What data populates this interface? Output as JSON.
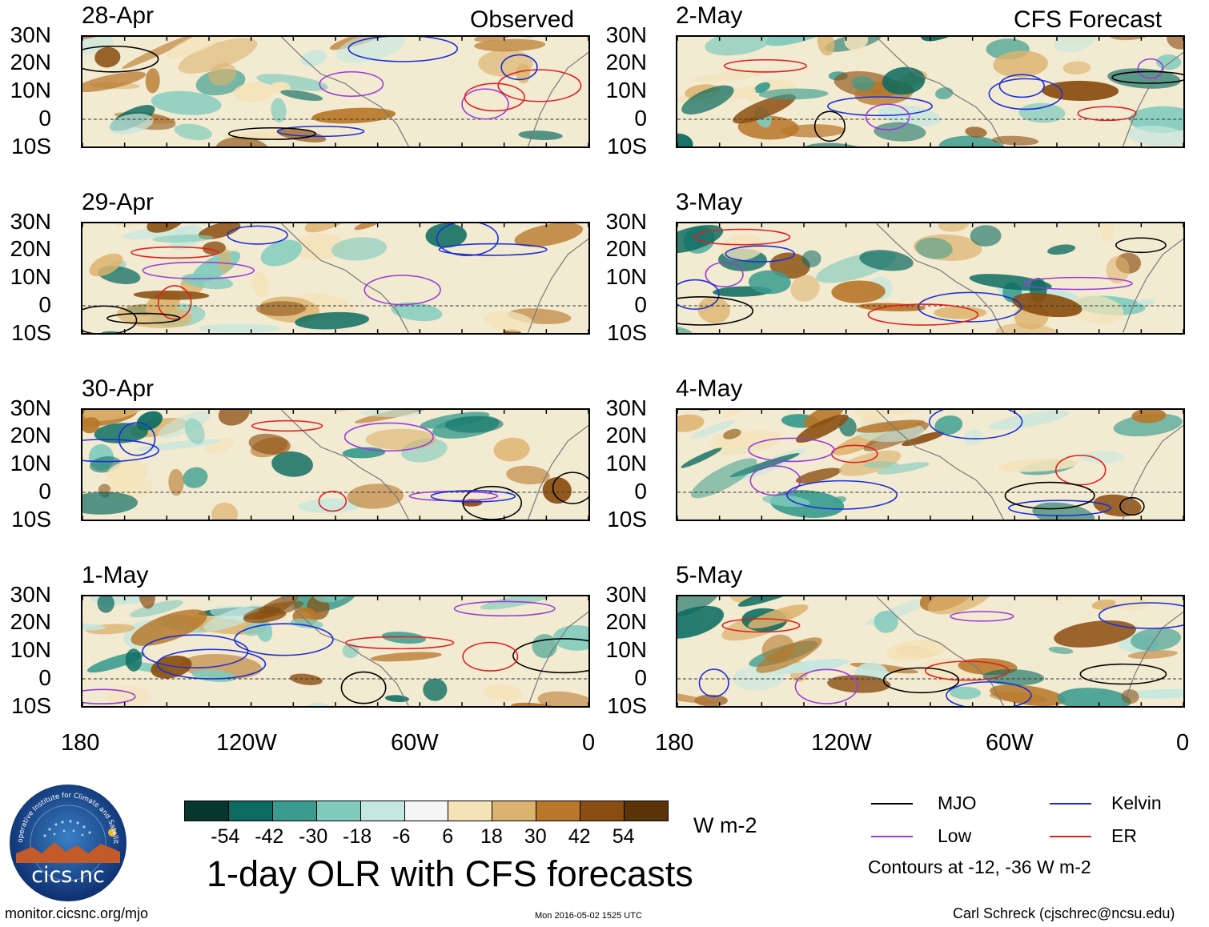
{
  "headers": {
    "left": "Observed",
    "right": "CFS Forecast"
  },
  "observed_panels": [
    {
      "date": "28-Apr"
    },
    {
      "date": "29-Apr"
    },
    {
      "date": "30-Apr"
    },
    {
      "date": "1-May"
    }
  ],
  "forecast_panels": [
    {
      "date": "2-May"
    },
    {
      "date": "3-May"
    },
    {
      "date": "4-May"
    },
    {
      "date": "5-May"
    }
  ],
  "lat_labels": [
    "30N",
    "20N",
    "10N",
    "0",
    "10S"
  ],
  "lon_labels": [
    "180",
    "120W",
    "60W",
    "0"
  ],
  "colorbar": {
    "colors": [
      "#06362e",
      "#0b6b60",
      "#3a9c8e",
      "#80cbbd",
      "#c5e7df",
      "#f5f5f5",
      "#f4e3b9",
      "#dcb36e",
      "#b8772a",
      "#8a4e10",
      "#5a3408"
    ],
    "labels": [
      "-54",
      "-42",
      "-30",
      "-18",
      "-6",
      "6",
      "18",
      "30",
      "42",
      "54"
    ],
    "units": "W m-2"
  },
  "legend": {
    "items": [
      {
        "label": "MJO",
        "color": "#000000"
      },
      {
        "label": "Kelvin",
        "color": "#1a2ed6"
      },
      {
        "label": "Low",
        "color": "#9a3cd8"
      },
      {
        "label": "ER",
        "color": "#e01f1f"
      }
    ],
    "note": "Contours at -12, -36 W m-2"
  },
  "logo": {
    "ring_text": "Cooperative Institute for Climate and Satellites",
    "name": "cics.nc"
  },
  "title": "1-day OLR with CFS forecasts",
  "footer": {
    "left": "monitor.cicsnc.org/mjo",
    "center": "Mon 2016-05-02 1525 UTC",
    "right": "Carl Schreck (cjschrec@ncsu.edu)"
  }
}
